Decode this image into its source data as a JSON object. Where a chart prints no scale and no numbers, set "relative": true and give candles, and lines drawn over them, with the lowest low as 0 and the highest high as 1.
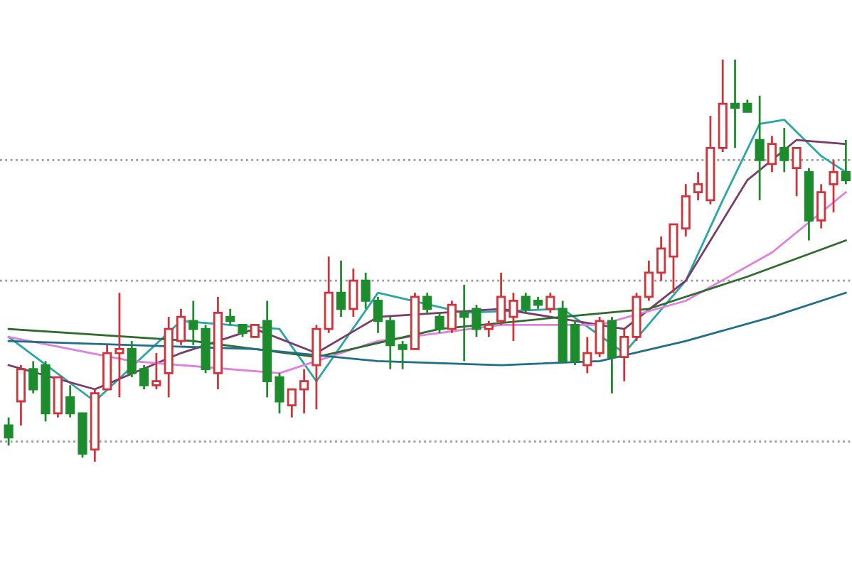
{
  "chart_data": {
    "type": "candlestick",
    "relative": true,
    "categories": [
      null,
      null,
      null,
      null,
      null,
      null,
      null,
      null,
      null,
      null,
      null,
      null,
      null,
      null,
      null,
      null,
      null,
      null,
      null,
      null,
      null,
      null,
      null,
      null,
      null,
      null,
      null,
      null,
      null,
      null,
      null,
      null,
      null,
      null,
      null,
      null,
      null,
      null,
      null,
      null,
      null,
      null,
      null,
      null,
      null,
      null,
      null,
      null,
      null,
      null,
      null,
      null,
      null,
      null,
      null,
      null,
      null,
      null,
      null,
      null,
      null,
      null,
      null,
      null,
      null,
      null,
      null,
      null,
      null
    ],
    "ohlc": [
      [
        0.09,
        0.11,
        0.04,
        0.06
      ],
      [
        0.15,
        0.24,
        0.09,
        0.23
      ],
      [
        0.23,
        0.25,
        0.17,
        0.18
      ],
      [
        0.24,
        0.25,
        0.1,
        0.12
      ],
      [
        0.12,
        0.21,
        0.11,
        0.21
      ],
      [
        0.16,
        0.19,
        0.11,
        0.12
      ],
      [
        0.12,
        0.12,
        0.01,
        0.02
      ],
      [
        0.03,
        0.18,
        0,
        0.17
      ],
      [
        0.18,
        0.29,
        0.18,
        0.27
      ],
      [
        0.27,
        0.42,
        0.16,
        0.28
      ],
      [
        0.28,
        0.3,
        0.21,
        0.22
      ],
      [
        0.23,
        0.24,
        0.18,
        0.19
      ],
      [
        0.19,
        0.27,
        0.18,
        0.2
      ],
      [
        0.22,
        0.36,
        0.16,
        0.33
      ],
      [
        0.3,
        0.38,
        0.29,
        0.36
      ],
      [
        0.35,
        0.4,
        0.29,
        0.33
      ],
      [
        0.33,
        0.34,
        0.22,
        0.23
      ],
      [
        0.22,
        0.41,
        0.18,
        0.37
      ],
      [
        0.36,
        0.38,
        0.34,
        0.35
      ],
      [
        0.34,
        0.34,
        0.31,
        0.32
      ],
      [
        0.31,
        0.34,
        0.31,
        0.34
      ],
      [
        0.35,
        0.4,
        0.16,
        0.2
      ],
      [
        0.21,
        0.22,
        0.12,
        0.15
      ],
      [
        0.14,
        0.18,
        0.11,
        0.18
      ],
      [
        0.18,
        0.23,
        0.12,
        0.2
      ],
      [
        0.24,
        0.34,
        0.13,
        0.33
      ],
      [
        0.33,
        0.51,
        0.32,
        0.42
      ],
      [
        0.42,
        0.5,
        0.36,
        0.38
      ],
      [
        0.38,
        0.48,
        0.36,
        0.45
      ],
      [
        0.45,
        0.47,
        0.38,
        0.4
      ],
      [
        0.4,
        0.41,
        0.32,
        0.35
      ],
      [
        0.35,
        0.36,
        0.23,
        0.29
      ],
      [
        0.29,
        0.3,
        0.23,
        0.28
      ],
      [
        0.28,
        0.42,
        0.28,
        0.41
      ],
      [
        0.41,
        0.42,
        0.37,
        0.38
      ],
      [
        0.36,
        0.37,
        0.32,
        0.33
      ],
      [
        0.33,
        0.4,
        0.32,
        0.39
      ],
      [
        0.37,
        0.44,
        0.25,
        0.36
      ],
      [
        0.38,
        0.39,
        0.31,
        0.33
      ],
      [
        0.33,
        0.35,
        0.31,
        0.34
      ],
      [
        0.35,
        0.47,
        0.34,
        0.41
      ],
      [
        0.36,
        0.42,
        0.3,
        0.4
      ],
      [
        0.41,
        0.42,
        0.37,
        0.38
      ],
      [
        0.4,
        0.41,
        0.38,
        0.39
      ],
      [
        0.38,
        0.42,
        0.37,
        0.41
      ],
      [
        0.38,
        0.4,
        0.25,
        0.25
      ],
      [
        0.34,
        0.35,
        0.24,
        0.25
      ],
      [
        0.24,
        0.31,
        0.22,
        0.27
      ],
      [
        0.27,
        0.36,
        0.26,
        0.35
      ],
      [
        0.35,
        0.36,
        0.17,
        0.26
      ],
      [
        0.26,
        0.33,
        0.2,
        0.31
      ],
      [
        0.31,
        0.42,
        0.3,
        0.41
      ],
      [
        0.41,
        0.5,
        0.4,
        0.47
      ],
      [
        0.47,
        0.56,
        0.45,
        0.53
      ],
      [
        0.51,
        0.59,
        0.42,
        0.59
      ],
      [
        0.58,
        0.69,
        0.56,
        0.66
      ],
      [
        0.67,
        0.72,
        0.65,
        0.69
      ],
      [
        0.65,
        0.86,
        0.64,
        0.78
      ],
      [
        0.78,
        1,
        0.77,
        0.89
      ],
      [
        0.89,
        1,
        0.78,
        0.88
      ],
      [
        0.89,
        0.9,
        0.87,
        0.87
      ],
      [
        0.8,
        0.91,
        0.65,
        0.75
      ],
      [
        0.74,
        0.81,
        0.72,
        0.79
      ],
      [
        0.78,
        0.83,
        0.72,
        0.75
      ],
      [
        0.73,
        0.78,
        0.66,
        0.78
      ],
      [
        0.72,
        0.73,
        0.55,
        0.6
      ],
      [
        0.6,
        0.69,
        0.58,
        0.67
      ],
      [
        0.69,
        0.75,
        0.62,
        0.72
      ],
      [
        0.72,
        0.8,
        0.69,
        0.7
      ]
    ],
    "colors": [
      "#1c8c2c",
      "#d2323a",
      "#1c8c2c",
      "#1c8c2c",
      "#d2323a",
      "#1c8c2c",
      "#1c8c2c",
      "#d2323a",
      "#d2323a",
      "#d2323a",
      "#1c8c2c",
      "#1c8c2c",
      "#d2323a",
      "#d2323a",
      "#d2323a",
      "#1c8c2c",
      "#1c8c2c",
      "#d2323a",
      "#1c8c2c",
      "#1c8c2c",
      "#d2323a",
      "#1c8c2c",
      "#1c8c2c",
      "#d2323a",
      "#d2323a",
      "#d2323a",
      "#d2323a",
      "#1c8c2c",
      "#d2323a",
      "#1c8c2c",
      "#1c8c2c",
      "#1c8c2c",
      "#1c8c2c",
      "#d2323a",
      "#1c8c2c",
      "#1c8c2c",
      "#d2323a",
      "#1c8c2c",
      "#1c8c2c",
      "#d2323a",
      "#d2323a",
      "#d2323a",
      "#1c8c2c",
      "#1c8c2c",
      "#d2323a",
      "#1c8c2c",
      "#1c8c2c",
      "#d2323a",
      "#d2323a",
      "#1c8c2c",
      "#d2323a",
      "#d2323a",
      "#d2323a",
      "#d2323a",
      "#d2323a",
      "#d2323a",
      "#d2323a",
      "#d2323a",
      "#d2323a",
      "#1c8c2c",
      "#1c8c2c",
      "#1c8c2c",
      "#d2323a",
      "#1c8c2c",
      "#d2323a",
      "#1c8c2c",
      "#d2323a",
      "#d2323a",
      "#1c8c2c"
    ],
    "series": [
      {
        "type": "line",
        "color": "#2aa6a6",
        "values": [
          0.31,
          null,
          null,
          null,
          null,
          null,
          null,
          0.15,
          null,
          null,
          null,
          null,
          null,
          null,
          0.35,
          null,
          null,
          null,
          null,
          null,
          null,
          null,
          0.33,
          null,
          null,
          0.2,
          null,
          null,
          null,
          null,
          0.42,
          null,
          null,
          null,
          null,
          null,
          null,
          0.37,
          null,
          null,
          null,
          null,
          null,
          null,
          null,
          0.38,
          null,
          null,
          null,
          null,
          0.27,
          null,
          null,
          null,
          null,
          0.45,
          null,
          null,
          0.65,
          null,
          null,
          0.84,
          null,
          0.85,
          null,
          null,
          0.76,
          null,
          0.72
        ]
      },
      {
        "type": "line",
        "color": "#7a3b6a",
        "values": [
          0.24,
          null,
          null,
          null,
          null,
          null,
          null,
          0.18,
          null,
          null,
          null,
          null,
          null,
          null,
          0.27,
          null,
          null,
          null,
          null,
          null,
          0.33,
          null,
          null,
          null,
          null,
          0.27,
          null,
          null,
          null,
          null,
          0.36,
          null,
          null,
          null,
          null,
          null,
          null,
          null,
          null,
          null,
          0.38,
          null,
          null,
          null,
          null,
          null,
          null,
          null,
          null,
          null,
          0.33,
          null,
          null,
          null,
          null,
          0.45,
          null,
          null,
          null,
          null,
          0.7,
          null,
          null,
          null,
          0.8,
          null,
          null,
          null,
          0.79
        ]
      },
      {
        "type": "line",
        "color": "#e07fe0",
        "values": [
          0.31,
          null,
          null,
          null,
          null,
          null,
          null,
          null,
          null,
          null,
          0.25,
          null,
          null,
          null,
          null,
          null,
          null,
          null,
          null,
          null,
          null,
          null,
          0.22,
          null,
          null,
          null,
          null,
          null,
          null,
          null,
          0.3,
          null,
          null,
          null,
          null,
          null,
          null,
          null,
          null,
          null,
          0.34,
          null,
          null,
          null,
          null,
          null,
          null,
          null,
          0.34,
          null,
          null,
          null,
          null,
          null,
          null,
          0.4,
          null,
          null,
          null,
          null,
          null,
          null,
          0.52,
          null,
          null,
          null,
          null,
          null,
          0.67
        ]
      },
      {
        "type": "line",
        "color": "#2e6b2e",
        "values": [
          0.33,
          null,
          null,
          null,
          null,
          null,
          null,
          null,
          null,
          null,
          null,
          null,
          null,
          null,
          null,
          0.3,
          null,
          null,
          null,
          null,
          null,
          null,
          null,
          null,
          null,
          0.26,
          null,
          null,
          null,
          null,
          null,
          null,
          null,
          null,
          null,
          0.33,
          null,
          null,
          null,
          null,
          null,
          null,
          null,
          null,
          null,
          0.36,
          null,
          null,
          null,
          null,
          null,
          null,
          0.38,
          null,
          null,
          null,
          null,
          null,
          null,
          null,
          0.46,
          null,
          null,
          null,
          null,
          null,
          null,
          null,
          0.55
        ]
      },
      {
        "type": "line",
        "color": "#1f6f8b",
        "values": [
          0.3,
          null,
          null,
          null,
          null,
          null,
          null,
          null,
          null,
          null,
          null,
          null,
          null,
          null,
          null,
          null,
          null,
          null,
          null,
          null,
          0.28,
          null,
          null,
          null,
          null,
          null,
          null,
          null,
          null,
          null,
          0.25,
          null,
          null,
          null,
          null,
          null,
          null,
          null,
          null,
          null,
          0.24,
          null,
          null,
          null,
          null,
          null,
          null,
          null,
          0.25,
          null,
          null,
          null,
          null,
          null,
          null,
          0.3,
          null,
          null,
          null,
          null,
          null,
          null,
          0.36,
          null,
          null,
          null,
          null,
          null,
          0.42
        ]
      }
    ],
    "ref_lines": [
      {
        "axis": "y",
        "value": 0.75,
        "color": "#999999",
        "line_style": "dotted"
      },
      {
        "axis": "y",
        "value": 0.45,
        "color": "#999999",
        "line_style": "dotted"
      },
      {
        "axis": "y",
        "value": 0.05,
        "color": "#999999",
        "line_style": "dotted"
      }
    ]
  }
}
